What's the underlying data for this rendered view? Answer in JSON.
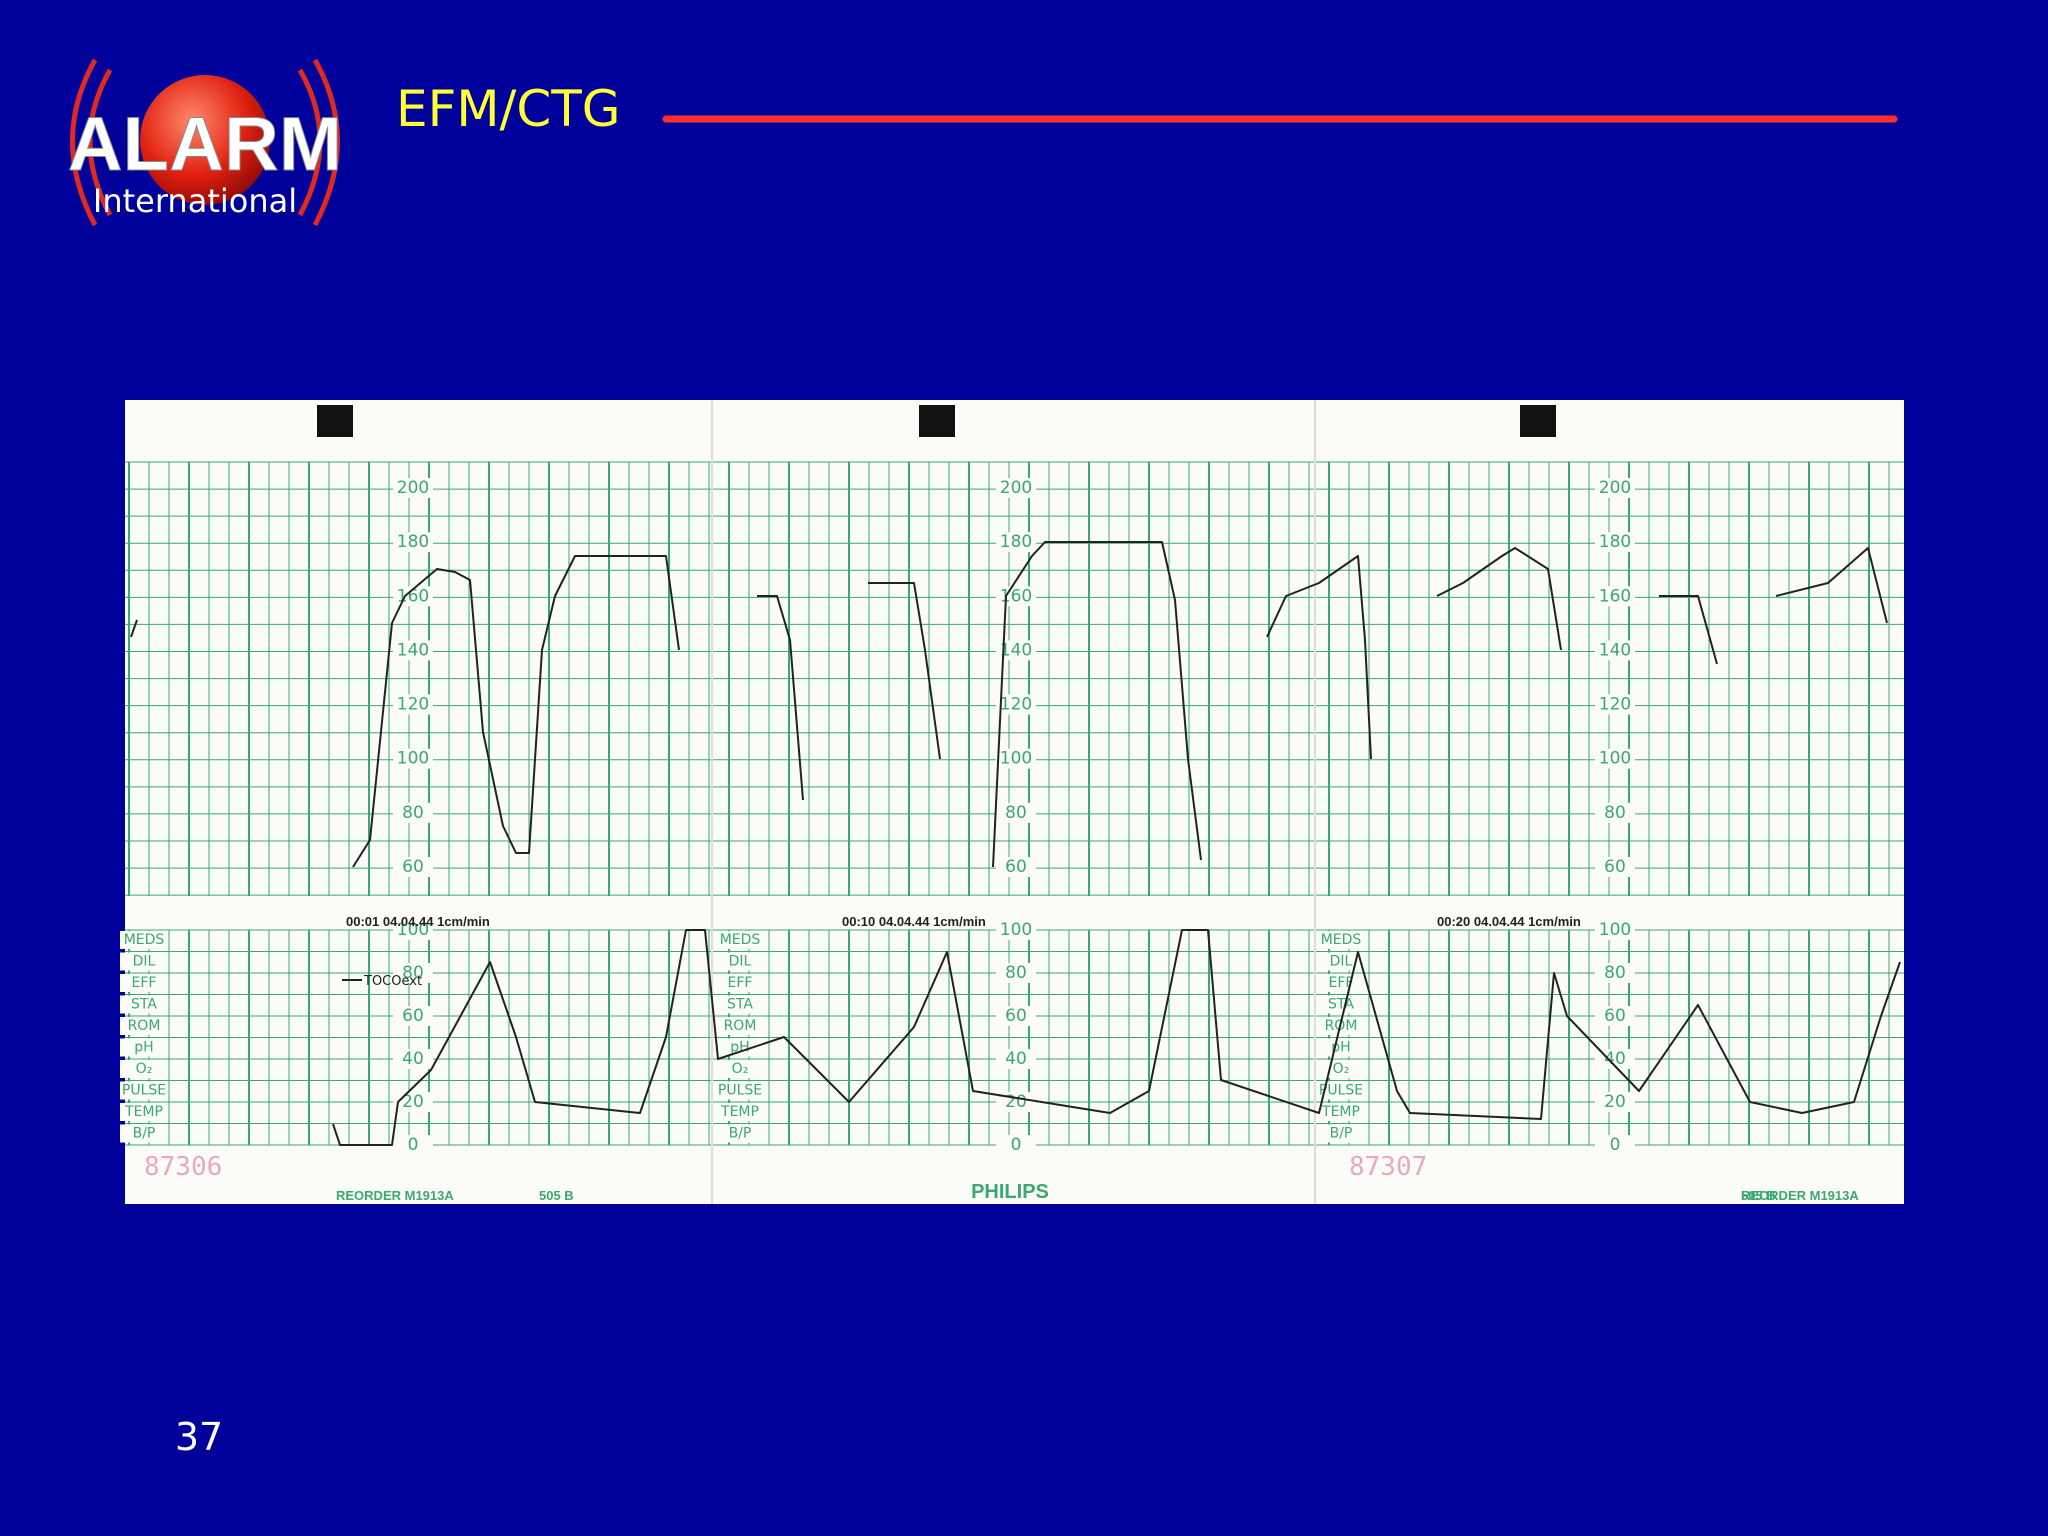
{
  "logo": {
    "name": "ALARM",
    "subtitle": "International"
  },
  "header": {
    "title": "EFM/CTG"
  },
  "strip": {
    "fhr_scale": [
      200,
      180,
      160,
      140,
      120,
      100,
      80,
      60
    ],
    "toco_scale": [
      100,
      80,
      60,
      40,
      20,
      0
    ],
    "panels": [
      {
        "stamp": "00:01  04.04.44  1cm/min"
      },
      {
        "stamp": "00:10  04.04.44  1cm/min"
      },
      {
        "stamp": "00:20  04.04.44  1cm/min"
      }
    ],
    "row_labels": [
      "MEDS",
      "DIL",
      "EFF",
      "STA",
      "ROM",
      "pH",
      "O₂",
      "PULSE",
      "TEMP",
      "B/P"
    ],
    "toco_label": "TOCOext",
    "serials": [
      "87306",
      "87307"
    ],
    "reorder": [
      "REORDER  M1913A",
      "505 B"
    ],
    "brand": "PHILIPS"
  },
  "page_number": "37"
}
